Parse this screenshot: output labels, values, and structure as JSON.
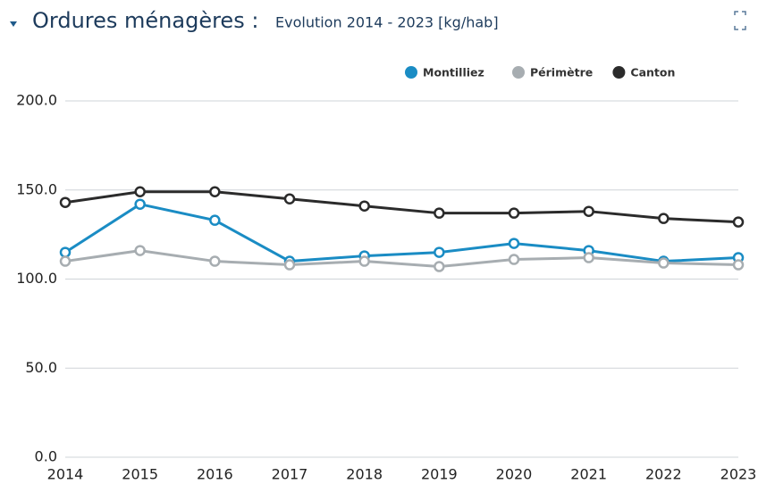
{
  "chart_data": {
    "type": "line",
    "title": "Ordures ménagères :",
    "subtitle": "Evolution 2014 - 2023 [kg/hab]",
    "categories": [
      "2014",
      "2015",
      "2016",
      "2017",
      "2018",
      "2019",
      "2020",
      "2021",
      "2022",
      "2023"
    ],
    "series": [
      {
        "name": "Montilliez",
        "color": "#1a8cc4",
        "values": [
          115,
          142,
          133,
          110,
          113,
          115,
          120,
          116,
          110,
          112
        ]
      },
      {
        "name": "Périmètre",
        "color": "#a7adb1",
        "values": [
          110,
          116,
          110,
          108,
          110,
          107,
          111,
          112,
          109,
          108
        ]
      },
      {
        "name": "Canton",
        "color": "#2b2b2b",
        "values": [
          143,
          149,
          149,
          145,
          141,
          137,
          137,
          138,
          134,
          132
        ]
      }
    ],
    "ylim": [
      0,
      200
    ],
    "yticks": [
      {
        "value": 0,
        "label": "0.0"
      },
      {
        "value": 50,
        "label": "50.0"
      },
      {
        "value": 100,
        "label": "100.0"
      },
      {
        "value": 150,
        "label": "150.0"
      },
      {
        "value": 200,
        "label": "200.0"
      }
    ],
    "grid": true,
    "legend": "top-right"
  }
}
